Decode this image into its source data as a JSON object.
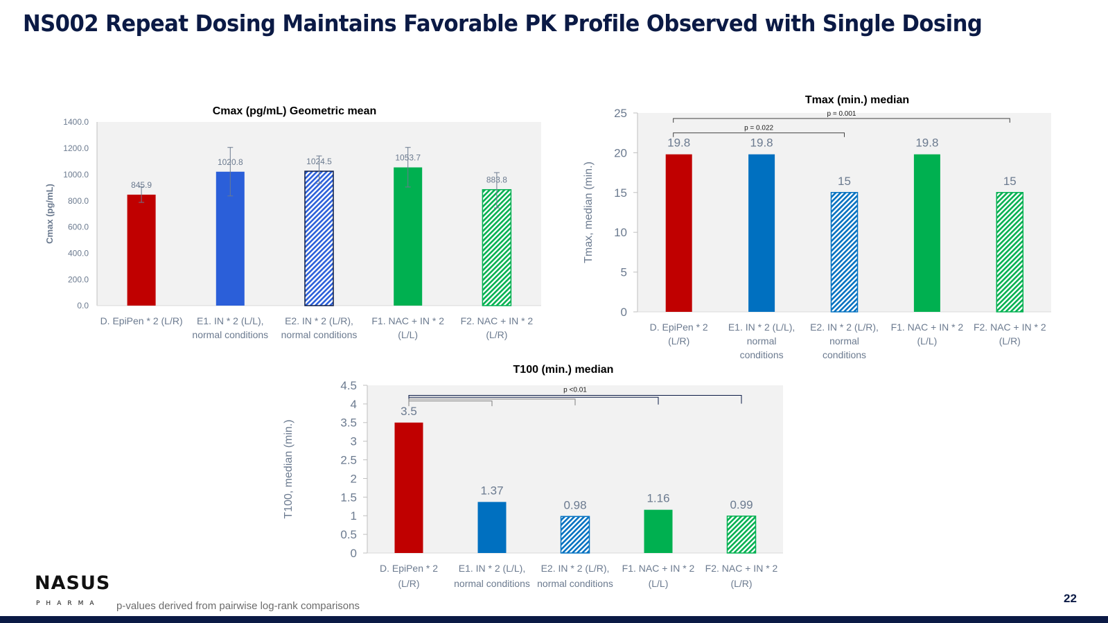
{
  "slide": {
    "title": "NS002 Repeat Dosing Maintains Favorable PK Profile Observed with Single Dosing",
    "footnote": "p-values derived from pairwise log-rank comparisons",
    "page_number": "22",
    "logo": {
      "name": "NASUS",
      "sub": "PHARMA"
    }
  },
  "colors": {
    "title": "#0b1a45",
    "red": "#c00000",
    "blue_cmax": "#2b5fd9",
    "blue": "#0070c0",
    "green": "#00b050",
    "plot_bg": "#f2f2f2",
    "axis_text": "#6b7a8f"
  },
  "chart_data": [
    {
      "id": "cmax",
      "type": "bar",
      "title": "Cmax (pg/mL) Geometric mean",
      "xlabel": "",
      "ylabel": "Cmax (pg/mL)",
      "ylim": [
        0,
        1400
      ],
      "yticks": [
        "0.0",
        "200.0",
        "400.0",
        "600.0",
        "800.0",
        "1000.0",
        "1200.0",
        "1400.0"
      ],
      "ytick_values": [
        0,
        200,
        400,
        600,
        800,
        1000,
        1200,
        1400
      ],
      "categories": [
        [
          "D. EpiPen * 2 (L/R)"
        ],
        [
          "E1. IN * 2 (L/L),",
          "normal conditions"
        ],
        [
          "E2. IN * 2 (L/R),",
          "normal conditions"
        ],
        [
          "F1. NAC + IN * 2",
          "(L/L)"
        ],
        [
          "F2. NAC + IN * 2",
          "(L/R)"
        ]
      ],
      "values": [
        845.9,
        1020.8,
        1024.5,
        1053.7,
        883.8
      ],
      "labels": [
        "845.9",
        "1020.8",
        "1024.5",
        "1053.7",
        "883.8"
      ],
      "error_low": [
        787,
        836,
        930,
        904,
        745
      ],
      "error_high": [
        905,
        1206,
        1141,
        1206,
        1014
      ],
      "fills": [
        "red",
        "blue_cmax",
        "blue_cmax-hatched",
        "green",
        "green-hatched"
      ],
      "grid": false,
      "legend": "none",
      "comparisons": []
    },
    {
      "id": "tmax",
      "type": "bar",
      "title": "Tmax (min.) median",
      "xlabel": "",
      "ylabel": "Tmax, median (min.)",
      "ylim": [
        0,
        25
      ],
      "yticks": [
        "0",
        "5",
        "10",
        "15",
        "20",
        "25"
      ],
      "ytick_values": [
        0,
        5,
        10,
        15,
        20,
        25
      ],
      "categories": [
        [
          "D. EpiPen * 2",
          "(L/R)"
        ],
        [
          "E1. IN * 2 (L/L),",
          "normal",
          "conditions"
        ],
        [
          "E2. IN * 2 (L/R),",
          "normal",
          "conditions"
        ],
        [
          "F1. NAC + IN * 2",
          "(L/L)"
        ],
        [
          "F2. NAC + IN * 2",
          "(L/R)"
        ]
      ],
      "values": [
        19.8,
        19.8,
        15,
        19.8,
        15
      ],
      "labels": [
        "19.8",
        "19.8",
        "15",
        "19.8",
        "15"
      ],
      "fills": [
        "red",
        "blue",
        "blue-hatched",
        "green",
        "green-hatched"
      ],
      "grid": false,
      "legend": "none",
      "comparisons": [
        {
          "from": 0,
          "to": 4,
          "label": "p = 0.001",
          "level": 24.3
        },
        {
          "from": 0,
          "to": 2,
          "label": "p = 0.022",
          "level": 22.5
        }
      ]
    },
    {
      "id": "t100",
      "type": "bar",
      "title": "T100 (min.) median",
      "xlabel": "",
      "ylabel": "T100, median (min.)",
      "ylim": [
        0,
        4.5
      ],
      "yticks": [
        "0",
        "0.5",
        "1",
        "1.5",
        "2",
        "2.5",
        "3",
        "3.5",
        "4",
        "4.5"
      ],
      "ytick_values": [
        0,
        0.5,
        1,
        1.5,
        2,
        2.5,
        3,
        3.5,
        4,
        4.5
      ],
      "categories": [
        [
          "D. EpiPen * 2",
          "(L/R)"
        ],
        [
          "E1. IN * 2 (L/L),",
          "normal conditions"
        ],
        [
          "E2. IN * 2 (L/R),",
          "normal conditions"
        ],
        [
          "F1. NAC + IN * 2",
          "(L/L)"
        ],
        [
          "F2. NAC + IN * 2",
          "(L/R)"
        ]
      ],
      "values": [
        3.5,
        1.37,
        0.98,
        1.16,
        0.99
      ],
      "labels": [
        "3.5",
        "1.37",
        "0.98",
        "1.16",
        "0.99"
      ],
      "fills": [
        "red",
        "blue",
        "blue-hatched",
        "green",
        "green-hatched"
      ],
      "grid": false,
      "legend": "none",
      "comparisons_label": "p <0.01",
      "comparisons": [
        {
          "from": 0,
          "to": 4,
          "level": 4.23
        },
        {
          "from": 0,
          "to": 3,
          "level": 4.18
        },
        {
          "from": 0,
          "to": 2,
          "level": 4.13
        },
        {
          "from": 0,
          "to": 1,
          "level": 4.08
        }
      ]
    }
  ]
}
